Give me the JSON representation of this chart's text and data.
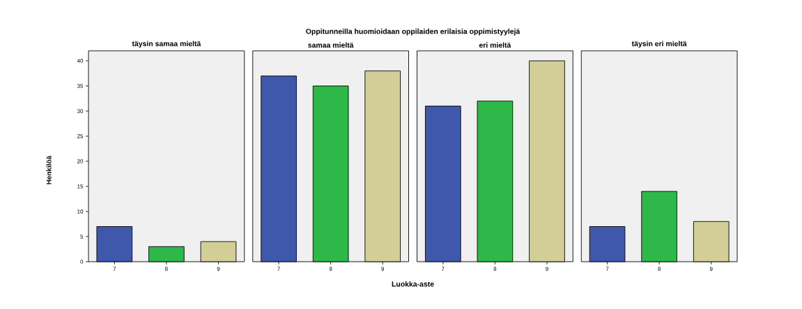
{
  "chart_data": [
    {
      "type": "bar",
      "subtitle": "täysin samaa mieltä",
      "ylabel": "Henkilöä",
      "categories": [
        "7",
        "8",
        "9"
      ],
      "values": [
        7,
        3,
        4
      ],
      "colors": [
        "#3f58ac",
        "#2fb84a",
        "#d3ce98"
      ],
      "ylim": [
        0,
        42
      ],
      "yticks": [
        0,
        5,
        10,
        15,
        20,
        25,
        30,
        35,
        40
      ]
    },
    {
      "type": "bar",
      "subtitle": "samaa mieltä",
      "categories": [
        "7",
        "8",
        "9"
      ],
      "values": [
        37,
        35,
        38
      ],
      "colors": [
        "#3f58ac",
        "#2fb84a",
        "#d3ce98"
      ],
      "ylim": [
        0,
        42
      ],
      "tick_labels": "x"
    },
    {
      "type": "bar",
      "title": "Oppitunneilla huomioidaan oppilaiden erilaisia oppimistyylejä",
      "xlabel": "Luokka-aste",
      "subtitle": "eri mieltä",
      "categories": [
        "7",
        "8",
        "9"
      ],
      "values": [
        31,
        32,
        40
      ],
      "colors": [
        "#3f58ac",
        "#2fb84a",
        "#d3ce98"
      ],
      "ylim": [
        0,
        42
      ],
      "tick_labels": "x"
    },
    {
      "type": "bar",
      "subtitle": "täysin eri mieltä",
      "categories": [
        "7",
        "8",
        "9"
      ],
      "values": [
        7,
        14,
        8
      ],
      "colors": [
        "#3f58ac",
        "#2fb84a",
        "#d3ce98"
      ],
      "ylim": [
        0,
        42
      ],
      "tick_labels": "x"
    }
  ]
}
